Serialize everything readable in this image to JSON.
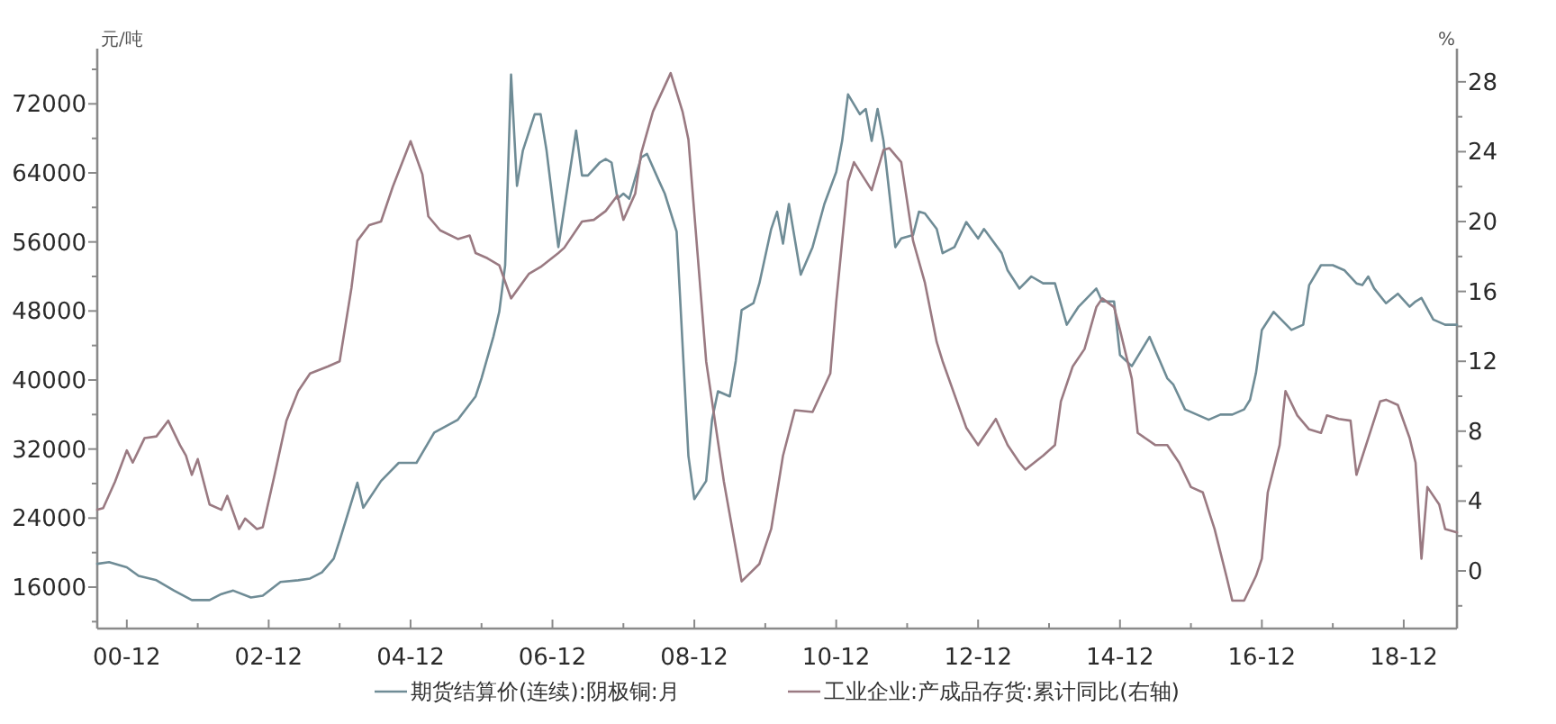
{
  "chart_data": {
    "type": "line",
    "ylabel": "元/吨",
    "y2label": "%",
    "legend": "bottom",
    "xlim": [
      "2000-07",
      "2019-09"
    ],
    "xticks": [
      {
        "value": "2000-12",
        "label": "00-12"
      },
      {
        "value": "2001-12",
        "label": null
      },
      {
        "value": "2002-12",
        "label": "02-12"
      },
      {
        "value": "2003-12",
        "label": null
      },
      {
        "value": "2004-12",
        "label": "04-12"
      },
      {
        "value": "2005-12",
        "label": null
      },
      {
        "value": "2006-12",
        "label": "06-12"
      },
      {
        "value": "2007-12",
        "label": null
      },
      {
        "value": "2008-12",
        "label": "08-12"
      },
      {
        "value": "2009-12",
        "label": null
      },
      {
        "value": "2010-12",
        "label": "10-12"
      },
      {
        "value": "2011-12",
        "label": null
      },
      {
        "value": "2012-12",
        "label": "12-12"
      },
      {
        "value": "2013-12",
        "label": null
      },
      {
        "value": "2014-12",
        "label": "14-12"
      },
      {
        "value": "2015-12",
        "label": null
      },
      {
        "value": "2016-12",
        "label": "16-12"
      },
      {
        "value": "2017-12",
        "label": null
      },
      {
        "value": "2018-12",
        "label": "18-12"
      }
    ],
    "ylim": [
      11200,
      78400
    ],
    "yticks": [
      {
        "value": 12000,
        "label": null
      },
      16000,
      {
        "value": 20000,
        "label": null
      },
      24000,
      {
        "value": 28000,
        "label": null
      },
      32000,
      {
        "value": 36000,
        "label": null
      },
      40000,
      {
        "value": 44000,
        "label": null
      },
      48000,
      {
        "value": 52000,
        "label": null
      },
      56000,
      {
        "value": 60000,
        "label": null
      },
      64000,
      {
        "value": 68000,
        "label": null
      },
      72000,
      {
        "value": 76000,
        "label": null
      }
    ],
    "y2lim": [
      -3.3,
      29.9
    ],
    "y2ticks": [
      {
        "value": -2,
        "label": null
      },
      0,
      {
        "value": 2,
        "label": null
      },
      4,
      {
        "value": 6,
        "label": null
      },
      8,
      {
        "value": 10,
        "label": null
      },
      12,
      {
        "value": 14,
        "label": null
      },
      16,
      {
        "value": 18,
        "label": null
      },
      20,
      {
        "value": 22,
        "label": null
      },
      24,
      {
        "value": 26,
        "label": null
      },
      28
    ],
    "series": [
      {
        "name": "期货结算价(连续):阴极铜:月",
        "color": "#6f8c96",
        "x": [
          "2000-07",
          "2000-09",
          "2000-12",
          "2001-02",
          "2001-05",
          "2001-08",
          "2001-11",
          "2002-02",
          "2002-04",
          "2002-06",
          "2002-09",
          "2002-11",
          "2003-02",
          "2003-05",
          "2003-07",
          "2003-09",
          "2003-11",
          "2003-12",
          "2004-03",
          "2004-04",
          "2004-07",
          "2004-10",
          "2005-01",
          "2005-04",
          "2005-08",
          "2005-11",
          "2005-12",
          "2006-02",
          "2006-03",
          "2006-04",
          "2006-05",
          "2006-06",
          "2006-07",
          "2006-09",
          "2006-10",
          "2006-11",
          "2006-12",
          "2007-01",
          "2007-04",
          "2007-05",
          "2007-06",
          "2007-08",
          "2007-09",
          "2007-10",
          "2007-11",
          "2007-12",
          "2008-01",
          "2008-03",
          "2008-04",
          "2008-06",
          "2008-07",
          "2008-09",
          "2008-11",
          "2008-12",
          "2009-02",
          "2009-03",
          "2009-04",
          "2009-06",
          "2009-07",
          "2009-08",
          "2009-10",
          "2009-11",
          "2010-01",
          "2010-02",
          "2010-03",
          "2010-04",
          "2010-06",
          "2010-08",
          "2010-10",
          "2010-12",
          "2011-01",
          "2011-02",
          "2011-04",
          "2011-05",
          "2011-06",
          "2011-07",
          "2011-08",
          "2011-09",
          "2011-10",
          "2011-11",
          "2012-01",
          "2012-02",
          "2012-03",
          "2012-05",
          "2012-06",
          "2012-08",
          "2012-10",
          "2012-12",
          "2013-01",
          "2013-04",
          "2013-05",
          "2013-07",
          "2013-09",
          "2013-11",
          "2014-01",
          "2014-03",
          "2014-05",
          "2014-08",
          "2014-09",
          "2014-11",
          "2014-12",
          "2015-02",
          "2015-05",
          "2015-08",
          "2015-09",
          "2015-11",
          "2016-01",
          "2016-03",
          "2016-05",
          "2016-07",
          "2016-09",
          "2016-10",
          "2016-11",
          "2016-12",
          "2017-02",
          "2017-05",
          "2017-07",
          "2017-08",
          "2017-10",
          "2017-12",
          "2018-02",
          "2018-04",
          "2018-05",
          "2018-06",
          "2018-07",
          "2018-09",
          "2018-11",
          "2019-01",
          "2019-02",
          "2019-03",
          "2019-05",
          "2019-07",
          "2019-09"
        ],
        "values": [
          18700,
          18900,
          18300,
          17300,
          16800,
          15600,
          14500,
          14500,
          15200,
          15600,
          14800,
          15000,
          16600,
          16800,
          17000,
          17700,
          19300,
          21400,
          28100,
          25200,
          28300,
          30400,
          30400,
          33900,
          35400,
          38100,
          40200,
          45000,
          47900,
          53300,
          75400,
          62500,
          66600,
          70800,
          70800,
          66600,
          61000,
          55400,
          68900,
          63700,
          63700,
          65200,
          65600,
          65200,
          61000,
          61600,
          61000,
          65800,
          66200,
          63100,
          61600,
          57200,
          31200,
          26200,
          28300,
          35400,
          38700,
          38100,
          42200,
          48100,
          48900,
          51200,
          57500,
          59500,
          55800,
          60400,
          52200,
          55400,
          60400,
          64100,
          67700,
          73100,
          70800,
          71400,
          67700,
          71400,
          67700,
          61600,
          55400,
          56400,
          56800,
          59500,
          59300,
          57500,
          54700,
          55400,
          58300,
          56400,
          57500,
          54700,
          52700,
          50600,
          52000,
          51200,
          51200,
          46400,
          48500,
          50600,
          49100,
          49100,
          42900,
          41600,
          45000,
          40200,
          39500,
          36600,
          36000,
          35400,
          36000,
          36000,
          36600,
          37700,
          40800,
          45800,
          47900,
          45800,
          46400,
          51000,
          53300,
          53300,
          52700,
          51200,
          51000,
          52000,
          50600,
          48900,
          50000,
          48500,
          49100,
          49500,
          47000,
          46400,
          46400
        ]
      },
      {
        "name": "工业企业:产成品存货:累计同比(右轴)",
        "color": "#9a7a82",
        "axis": "y2",
        "x": [
          "2000-07",
          "2000-08",
          "2000-10",
          "2000-12",
          "2001-01",
          "2001-03",
          "2001-05",
          "2001-07",
          "2001-09",
          "2001-10",
          "2001-11",
          "2001-12",
          "2002-02",
          "2002-04",
          "2002-05",
          "2002-07",
          "2002-08",
          "2002-10",
          "2002-11",
          "2003-01",
          "2003-03",
          "2003-05",
          "2003-07",
          "2003-10",
          "2003-12",
          "2004-02",
          "2004-03",
          "2004-05",
          "2004-07",
          "2004-09",
          "2004-12",
          "2005-02",
          "2005-03",
          "2005-05",
          "2005-08",
          "2005-10",
          "2005-11",
          "2006-01",
          "2006-03",
          "2006-05",
          "2006-08",
          "2006-10",
          "2007-01",
          "2007-02",
          "2007-05",
          "2007-07",
          "2007-09",
          "2007-11",
          "2007-12",
          "2008-02",
          "2008-03",
          "2008-05",
          "2008-08",
          "2008-10",
          "2008-11",
          "2009-02",
          "2009-05",
          "2009-08",
          "2009-11",
          "2010-01",
          "2010-03",
          "2010-05",
          "2010-08",
          "2010-11",
          "2010-12",
          "2011-02",
          "2011-03",
          "2011-06",
          "2011-08",
          "2011-09",
          "2011-11",
          "2012-01",
          "2012-03",
          "2012-05",
          "2012-06",
          "2012-10",
          "2012-12",
          "2013-03",
          "2013-05",
          "2013-07",
          "2013-08",
          "2013-11",
          "2014-01",
          "2014-02",
          "2014-04",
          "2014-06",
          "2014-08",
          "2014-09",
          "2014-11",
          "2014-12",
          "2015-02",
          "2015-03",
          "2015-06",
          "2015-08",
          "2015-10",
          "2015-12",
          "2016-02",
          "2016-04",
          "2016-06",
          "2016-07",
          "2016-09",
          "2016-11",
          "2016-12",
          "2017-01",
          "2017-03",
          "2017-04",
          "2017-06",
          "2017-08",
          "2017-10",
          "2017-11",
          "2018-01",
          "2018-03",
          "2018-04",
          "2018-06",
          "2018-08",
          "2018-09",
          "2018-11",
          "2019-01",
          "2019-02",
          "2019-03",
          "2019-04",
          "2019-06",
          "2019-07",
          "2019-09"
        ],
        "values": [
          3.5,
          3.6,
          5.1,
          6.9,
          6.2,
          7.6,
          7.7,
          8.6,
          7.2,
          6.6,
          5.5,
          6.4,
          3.8,
          3.5,
          4.3,
          2.4,
          3.0,
          2.4,
          2.5,
          5.5,
          8.6,
          10.3,
          11.3,
          11.7,
          12.0,
          16.2,
          18.9,
          19.8,
          20.0,
          22.0,
          24.6,
          22.7,
          20.3,
          19.5,
          19.0,
          19.2,
          18.2,
          17.9,
          17.5,
          15.6,
          17.0,
          17.4,
          18.2,
          18.5,
          20.0,
          20.1,
          20.6,
          21.5,
          20.1,
          21.6,
          23.9,
          26.3,
          28.5,
          26.3,
          24.7,
          12.0,
          5.1,
          -0.6,
          0.4,
          2.4,
          6.6,
          9.2,
          9.1,
          11.3,
          15.4,
          22.3,
          23.4,
          21.8,
          24.1,
          24.2,
          23.4,
          18.9,
          16.5,
          13.1,
          12.0,
          8.2,
          7.2,
          8.7,
          7.2,
          6.2,
          5.8,
          6.6,
          7.2,
          9.7,
          11.7,
          12.7,
          15.1,
          15.6,
          15.1,
          13.8,
          11.0,
          7.9,
          7.2,
          7.2,
          6.2,
          4.8,
          4.5,
          2.4,
          -0.3,
          -1.7,
          -1.7,
          -0.3,
          0.7,
          4.5,
          7.2,
          10.3,
          8.9,
          8.1,
          7.9,
          8.9,
          8.7,
          8.6,
          5.5,
          7.6,
          9.7,
          9.8,
          9.5,
          7.6,
          6.2,
          0.7,
          4.8,
          3.8,
          2.4,
          2.2
        ]
      }
    ]
  }
}
